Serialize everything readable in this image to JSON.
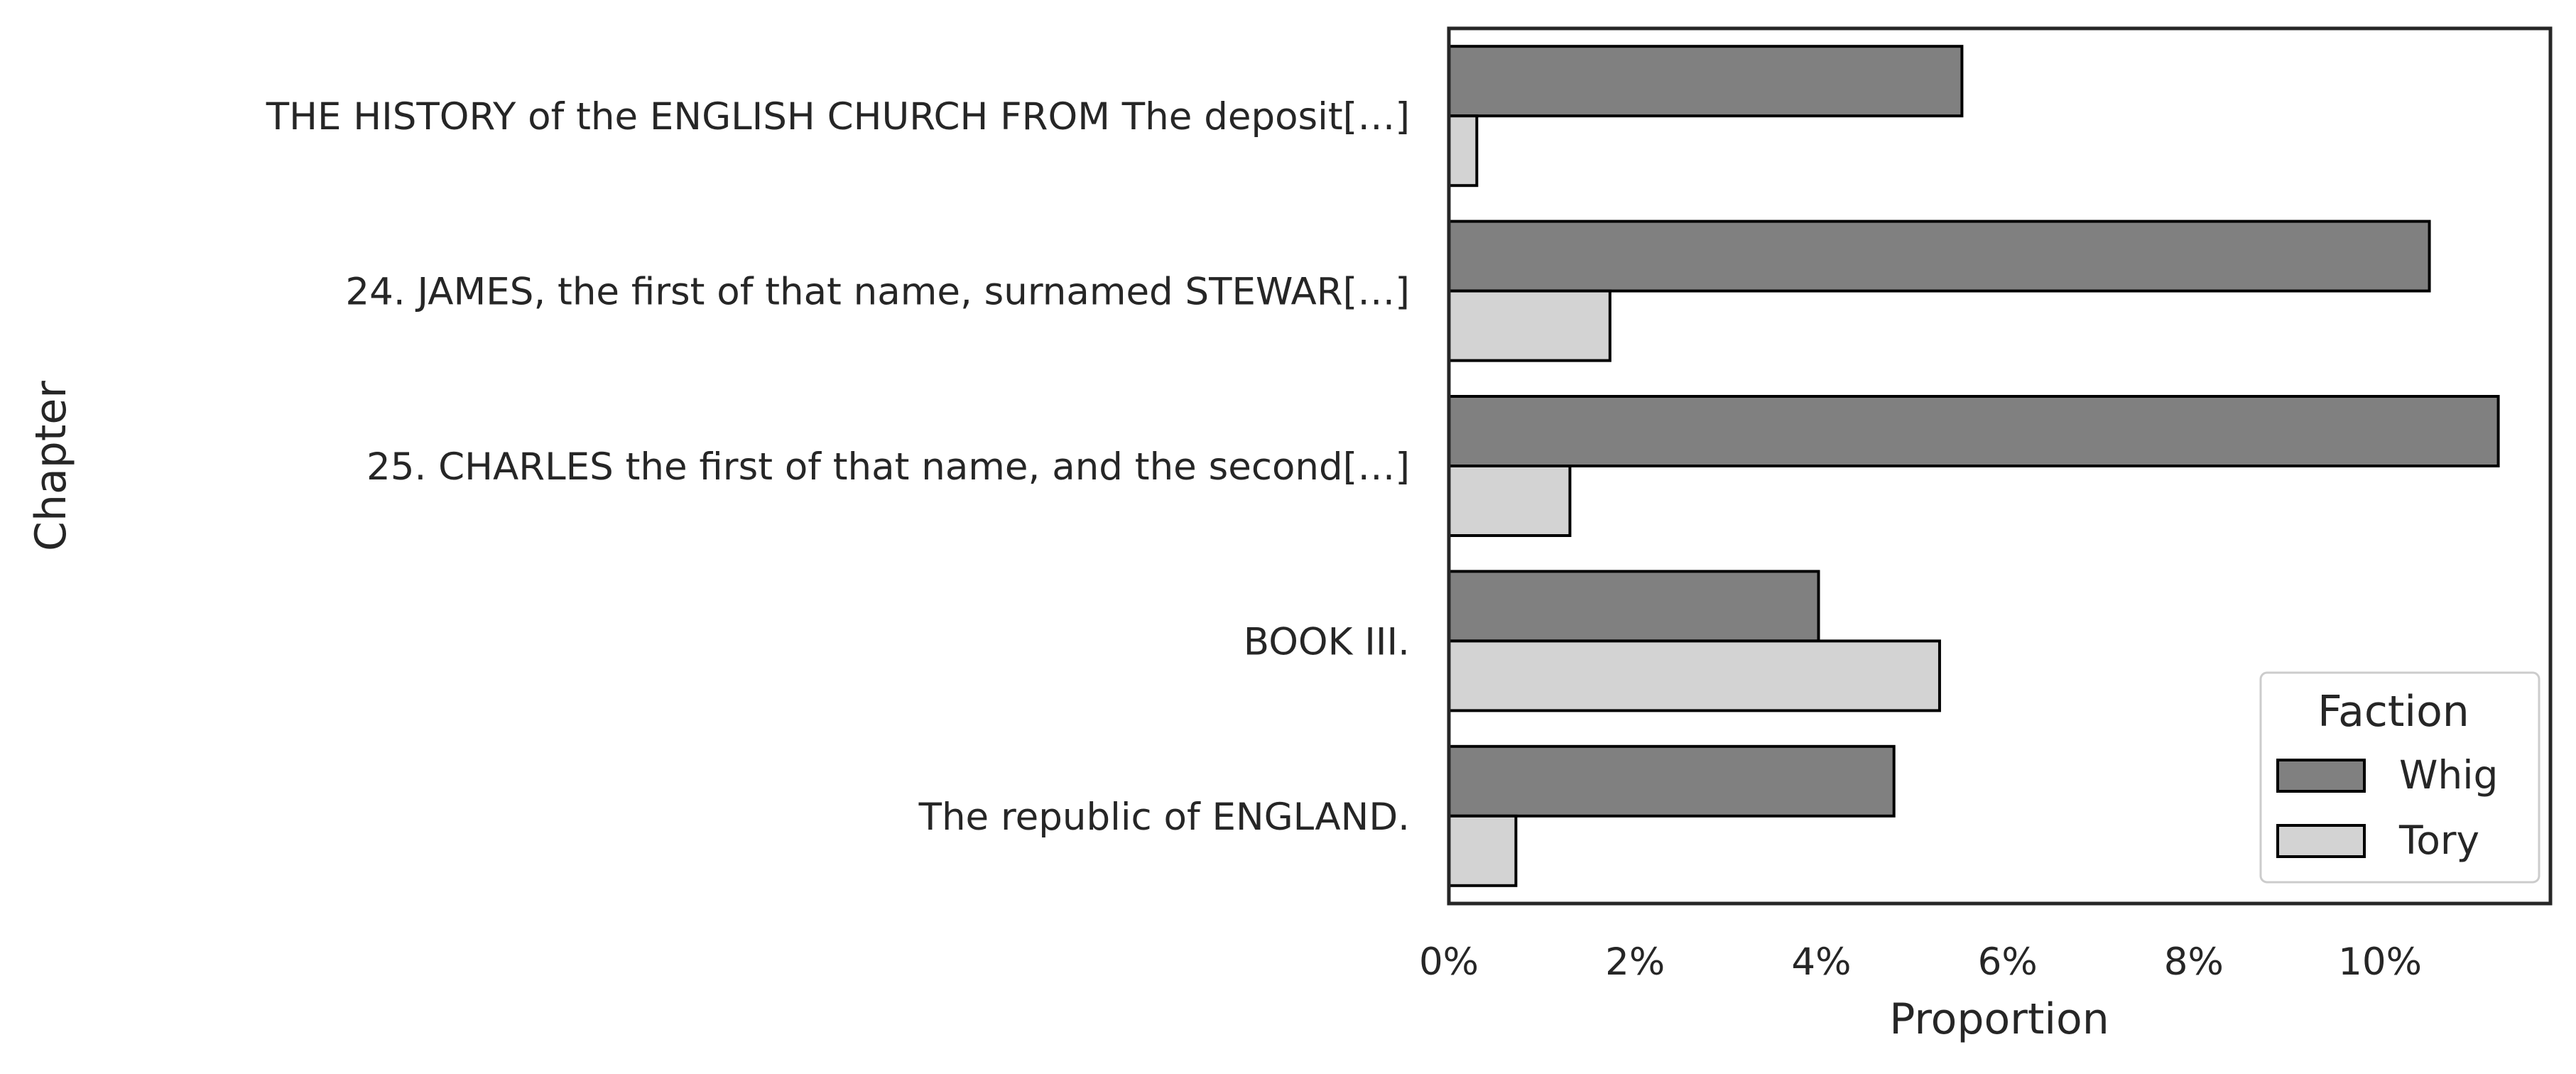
{
  "chart_data": {
    "type": "bar",
    "orientation": "horizontal",
    "categories": [
      "THE HISTORY of the ENGLISH CHURCH FROM The deposit[…]",
      "24. JAMES, the first of that name, surnamed STEWAR[…]",
      "25. CHARLES the first of that name, and the second[…]",
      "BOOK III.",
      "The republic of ENGLAND."
    ],
    "series": [
      {
        "name": "Whig",
        "color": "#808080",
        "values": [
          0.0551,
          0.1053,
          0.1127,
          0.0397,
          0.0478
        ]
      },
      {
        "name": "Tory",
        "color": "#d3d3d3",
        "values": [
          0.003,
          0.0173,
          0.013,
          0.0527,
          0.0072
        ]
      }
    ],
    "xlabel": "Proportion",
    "ylabel": "Chapter",
    "xlim": [
      0,
      0.1183
    ],
    "xticks": [
      0,
      0.02,
      0.04,
      0.06,
      0.08,
      0.1
    ],
    "xtick_labels": [
      "0%",
      "2%",
      "4%",
      "6%",
      "8%",
      "10%"
    ],
    "grid": false,
    "legend": {
      "title": "Faction",
      "position": "lower-right"
    }
  }
}
